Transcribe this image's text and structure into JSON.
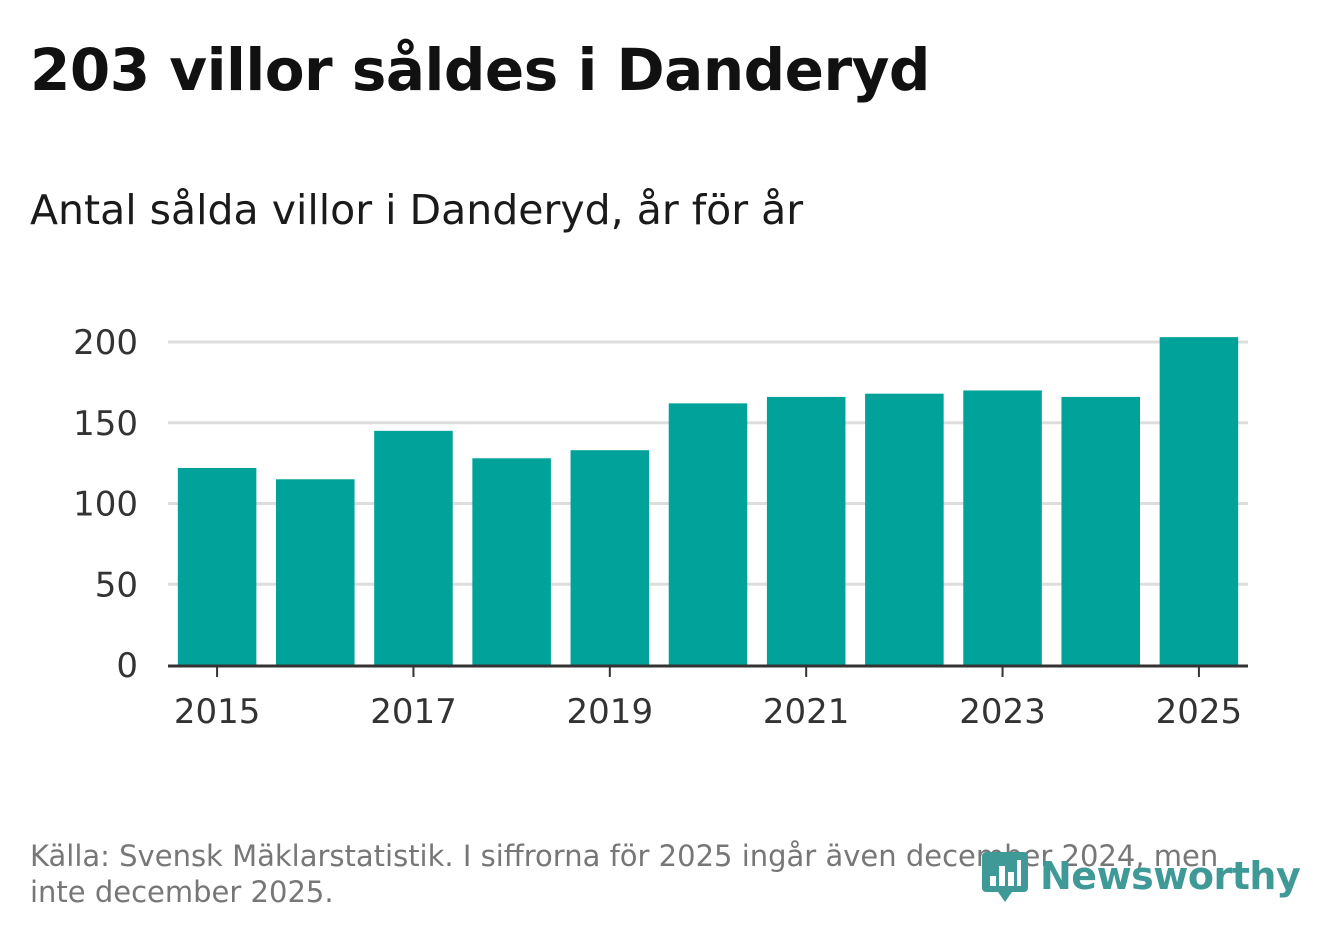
{
  "title": "203 villor såldes i Danderyd",
  "subtitle": "Antal sålda villor i Danderyd, år för år",
  "source": "Källa: Svensk Mäklarstatistik. I siffrorna för 2025 ingår även december 2024, men inte december 2025.",
  "logo": {
    "text": "Newsworthy",
    "icon": "bar-chart-speech-bubble-icon"
  },
  "colors": {
    "bar": "#00a29a",
    "grid": "#dddddd",
    "axis": "#333333",
    "logo": "#3f9a97"
  },
  "chart_data": {
    "type": "bar",
    "title": "Antal sålda villor i Danderyd, år för år",
    "xlabel": "",
    "ylabel": "",
    "categories": [
      "2015",
      "2016",
      "2017",
      "2018",
      "2019",
      "2020",
      "2021",
      "2022",
      "2023",
      "2024",
      "2025"
    ],
    "values": [
      122,
      115,
      145,
      128,
      133,
      162,
      166,
      168,
      170,
      166,
      203
    ],
    "x_tick_labels": [
      "2015",
      "2017",
      "2019",
      "2021",
      "2023",
      "2025"
    ],
    "y_ticks": [
      0,
      50,
      100,
      150,
      200
    ],
    "ylim": [
      0,
      200
    ],
    "grid": true,
    "legend": "none"
  }
}
